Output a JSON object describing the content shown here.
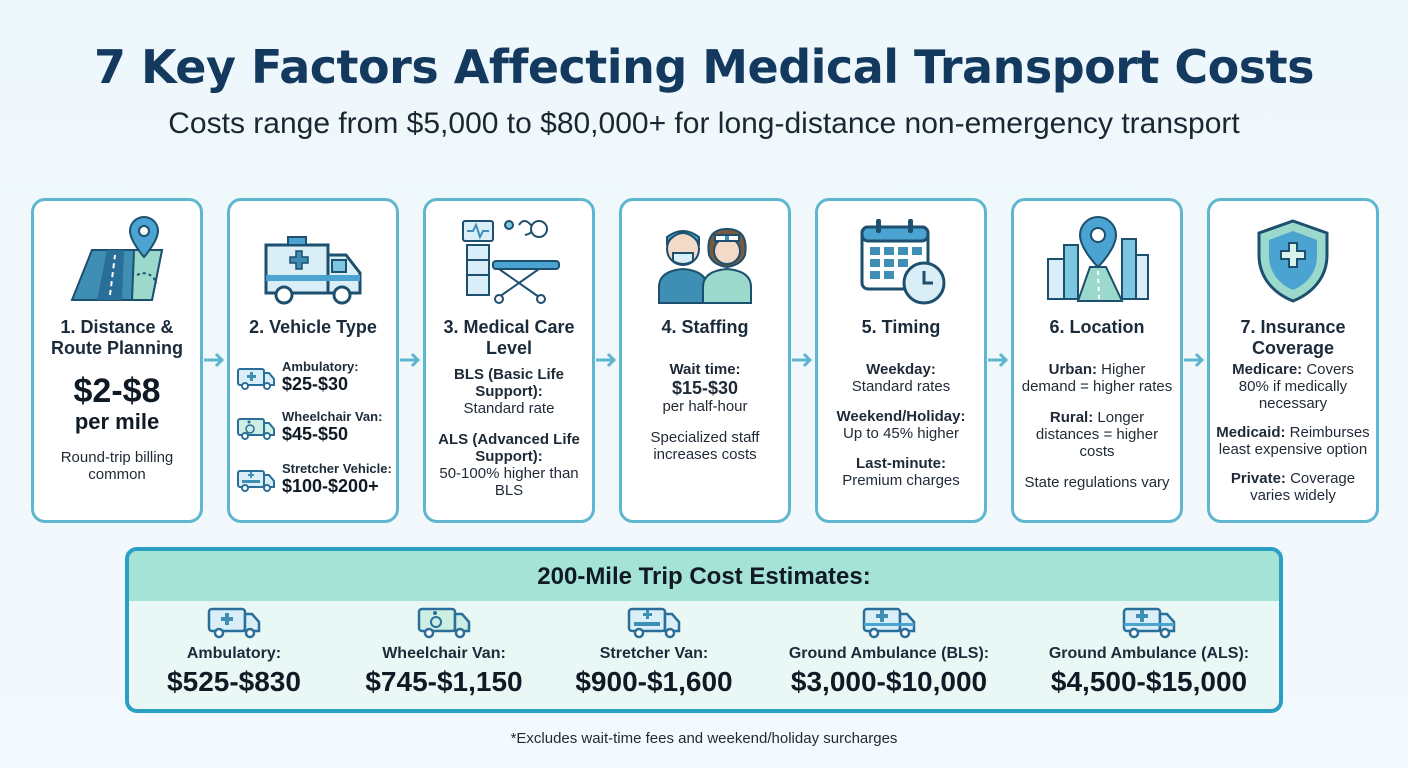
{
  "title": "7 Key Factors Affecting Medical Transport Costs",
  "subtitle": "Costs range from $5,000 to $80,000+ for long-distance non-emergency transport",
  "colors": {
    "accent": "#5fb7cf",
    "title": "#133a5e",
    "estimate_header": "#a5e3d6",
    "estimate_border": "#2aa0c4"
  },
  "cards": [
    {
      "title": "1. Distance & Route Planning",
      "icon": "map-pin-road-icon",
      "price": "$2-$8",
      "unit": "per mile",
      "note": "Round-trip billing common"
    },
    {
      "title": "2. Vehicle Type",
      "icon": "ambulance-icon",
      "vehicles": [
        {
          "label": "Ambulatory:",
          "price": "$25-$30",
          "icon": "ambulatory-van-icon"
        },
        {
          "label": "Wheelchair Van:",
          "price": "$45-$50",
          "icon": "wheelchair-van-icon"
        },
        {
          "label": "Stretcher Vehicle:",
          "price": "$100-$200+",
          "icon": "stretcher-vehicle-icon"
        }
      ]
    },
    {
      "title": "3. Medical Care Level",
      "icon": "medical-equipment-icon",
      "bls_head": "BLS (Basic Life Support):",
      "bls_text": "Standard rate",
      "als_head": "ALS (Advanced Life Support):",
      "als_text": "50-100% higher than BLS"
    },
    {
      "title": "4. Staffing",
      "icon": "medical-staff-icon",
      "wait_head": "Wait time:",
      "wait_price": "$15-$30",
      "wait_unit": "per half-hour",
      "note": "Specialized staff increases costs"
    },
    {
      "title": "5. Timing",
      "icon": "calendar-clock-icon",
      "weekday_head": "Weekday:",
      "weekday_text": "Standard rates",
      "weekend_head": "Weekend/Holiday:",
      "weekend_text": "Up to 45% higher",
      "lastmin_head": "Last-minute:",
      "lastmin_text": "Premium charges"
    },
    {
      "title": "6. Location",
      "icon": "city-pin-icon",
      "urban_head": "Urban:",
      "urban_text": "Higher demand = higher rates",
      "rural_head": "Rural:",
      "rural_text": "Longer distances = higher costs",
      "note": "State regulations vary"
    },
    {
      "title": "7. Insurance Coverage",
      "icon": "shield-cross-icon",
      "medicare_head": "Medicare:",
      "medicare_text": "Covers 80% if medically necessary",
      "medicaid_head": "Medicaid:",
      "medicaid_text": "Reimburses least expensive option",
      "private_head": "Private:",
      "private_text": "Coverage varies widely"
    }
  ],
  "estimates": {
    "title": "200-Mile Trip Cost Estimates:",
    "items": [
      {
        "label": "Ambulatory:",
        "value": "$525-$830",
        "icon": "ambulatory-van-icon"
      },
      {
        "label": "Wheelchair Van:",
        "value": "$745-$1,150",
        "icon": "wheelchair-van-icon"
      },
      {
        "label": "Stretcher Van:",
        "value": "$900-$1,600",
        "icon": "stretcher-van-icon"
      },
      {
        "label": "Ground Ambulance (BLS):",
        "value": "$3,000-$10,000",
        "icon": "ambulance-bls-icon"
      },
      {
        "label": "Ground Ambulance (ALS):",
        "value": "$4,500-$15,000",
        "icon": "ambulance-als-icon"
      }
    ]
  },
  "footnote": "*Excludes wait-time fees and weekend/holiday surcharges"
}
